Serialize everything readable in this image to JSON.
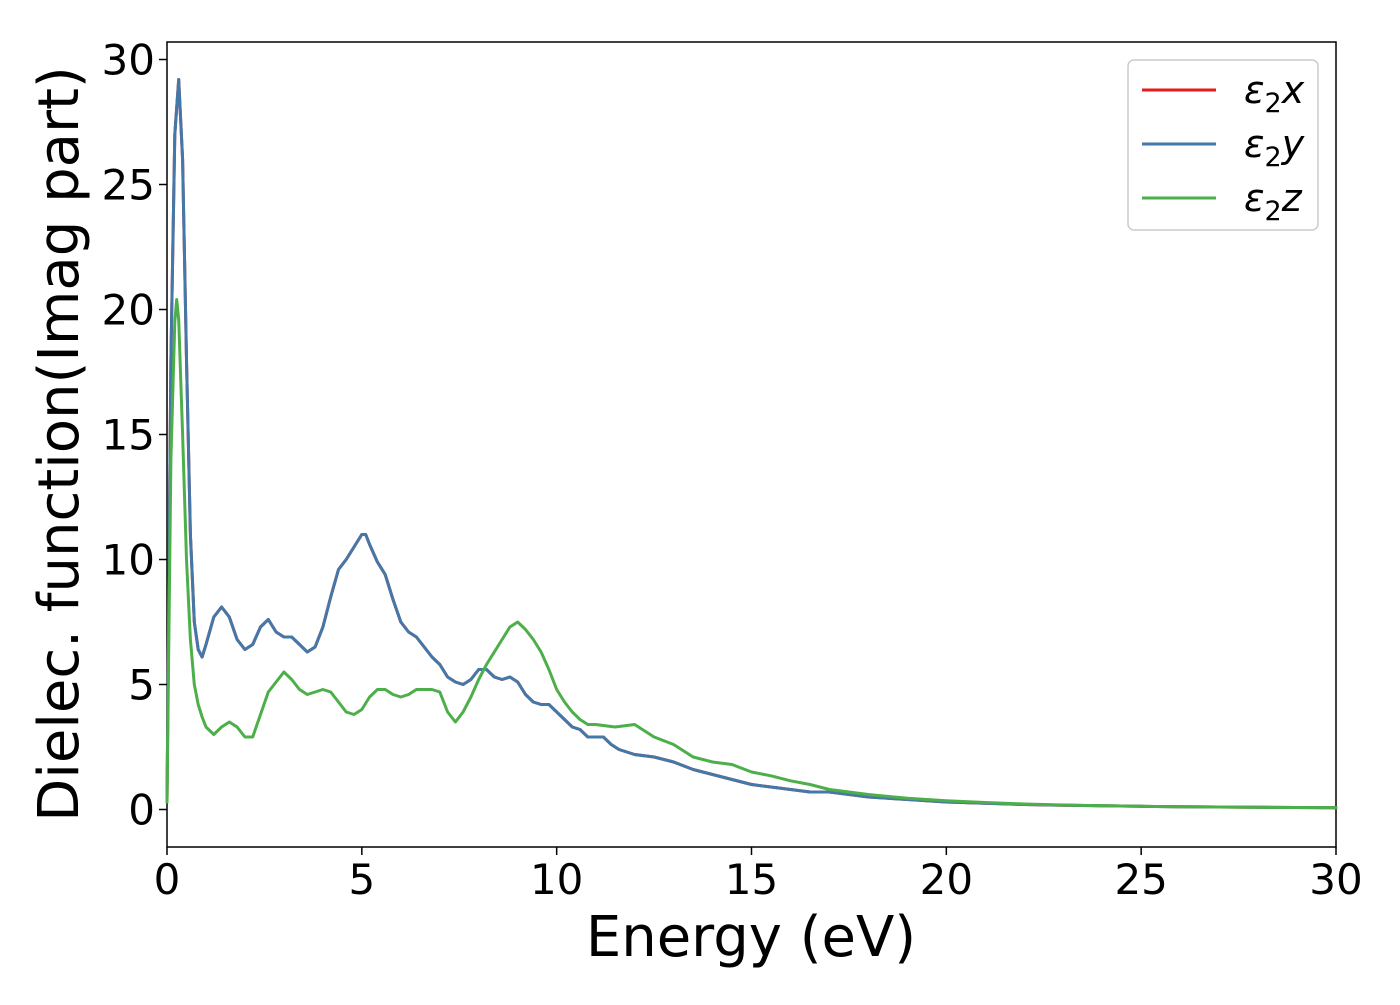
{
  "chart_data": {
    "type": "line",
    "xlabel": "Energy (eV)",
    "ylabel": "Dielec. function(Imag part)",
    "xlim": [
      0,
      30
    ],
    "ylim": [
      -1.5,
      30.7
    ],
    "xticks": [
      0,
      5,
      10,
      15,
      20,
      25,
      30
    ],
    "yticks": [
      0,
      5,
      10,
      15,
      20,
      25,
      30
    ],
    "grid": false,
    "legend_position": "top-right",
    "series": [
      {
        "name": "ε2x",
        "label_base": "ε",
        "label_sub": "2",
        "label_var": "x",
        "color": "#e41a1c",
        "x": [
          0,
          0.1,
          0.2,
          0.3,
          0.4,
          0.5,
          0.6,
          0.7,
          0.8,
          0.9,
          1.0,
          1.2,
          1.4,
          1.6,
          1.8,
          2.0,
          2.2,
          2.4,
          2.6,
          2.8,
          3.0,
          3.2,
          3.4,
          3.6,
          3.8,
          4.0,
          4.2,
          4.4,
          4.6,
          4.8,
          5.0,
          5.1,
          5.2,
          5.4,
          5.6,
          5.8,
          6.0,
          6.2,
          6.4,
          6.6,
          6.8,
          7.0,
          7.2,
          7.4,
          7.6,
          7.8,
          8.0,
          8.2,
          8.4,
          8.6,
          8.8,
          9.0,
          9.2,
          9.4,
          9.6,
          9.8,
          10.0,
          10.2,
          10.4,
          10.6,
          10.8,
          11.0,
          11.2,
          11.4,
          11.6,
          11.8,
          12.0,
          12.5,
          13.0,
          13.5,
          14.0,
          14.5,
          15.0,
          15.5,
          16.0,
          16.5,
          17.0,
          17.5,
          18.0,
          19.0,
          20.0,
          21.0,
          22.0,
          23.0,
          24.0,
          25.0,
          26.0,
          27.0,
          28.0,
          29.0,
          30.0
        ],
        "y": [
          0.3,
          18.0,
          27.0,
          29.2,
          26.0,
          18.0,
          11.0,
          7.5,
          6.4,
          6.1,
          6.6,
          7.7,
          8.1,
          7.7,
          6.8,
          6.4,
          6.6,
          7.3,
          7.6,
          7.1,
          6.9,
          6.9,
          6.6,
          6.3,
          6.5,
          7.3,
          8.5,
          9.6,
          10.0,
          10.5,
          11.0,
          11.0,
          10.6,
          9.9,
          9.4,
          8.4,
          7.5,
          7.1,
          6.9,
          6.5,
          6.1,
          5.8,
          5.3,
          5.1,
          5.0,
          5.2,
          5.6,
          5.6,
          5.3,
          5.2,
          5.3,
          5.1,
          4.6,
          4.3,
          4.2,
          4.2,
          3.9,
          3.6,
          3.3,
          3.2,
          2.9,
          2.9,
          2.9,
          2.6,
          2.4,
          2.3,
          2.2,
          2.1,
          1.9,
          1.6,
          1.4,
          1.2,
          1.0,
          0.9,
          0.8,
          0.7,
          0.7,
          0.6,
          0.5,
          0.4,
          0.3,
          0.25,
          0.2,
          0.17,
          0.15,
          0.13,
          0.11,
          0.1,
          0.09,
          0.08,
          0.07
        ]
      },
      {
        "name": "ε2y",
        "label_base": "ε",
        "label_sub": "2",
        "label_var": "y",
        "color": "#4478a8",
        "x": [
          0,
          0.1,
          0.2,
          0.3,
          0.4,
          0.5,
          0.6,
          0.7,
          0.8,
          0.9,
          1.0,
          1.2,
          1.4,
          1.6,
          1.8,
          2.0,
          2.2,
          2.4,
          2.6,
          2.8,
          3.0,
          3.2,
          3.4,
          3.6,
          3.8,
          4.0,
          4.2,
          4.4,
          4.6,
          4.8,
          5.0,
          5.1,
          5.2,
          5.4,
          5.6,
          5.8,
          6.0,
          6.2,
          6.4,
          6.6,
          6.8,
          7.0,
          7.2,
          7.4,
          7.6,
          7.8,
          8.0,
          8.2,
          8.4,
          8.6,
          8.8,
          9.0,
          9.2,
          9.4,
          9.6,
          9.8,
          10.0,
          10.2,
          10.4,
          10.6,
          10.8,
          11.0,
          11.2,
          11.4,
          11.6,
          11.8,
          12.0,
          12.5,
          13.0,
          13.5,
          14.0,
          14.5,
          15.0,
          15.5,
          16.0,
          16.5,
          17.0,
          17.5,
          18.0,
          19.0,
          20.0,
          21.0,
          22.0,
          23.0,
          24.0,
          25.0,
          26.0,
          27.0,
          28.0,
          29.0,
          30.0
        ],
        "y": [
          0.3,
          18.0,
          27.0,
          29.2,
          26.0,
          18.0,
          11.0,
          7.5,
          6.4,
          6.1,
          6.6,
          7.7,
          8.1,
          7.7,
          6.8,
          6.4,
          6.6,
          7.3,
          7.6,
          7.1,
          6.9,
          6.9,
          6.6,
          6.3,
          6.5,
          7.3,
          8.5,
          9.6,
          10.0,
          10.5,
          11.0,
          11.0,
          10.6,
          9.9,
          9.4,
          8.4,
          7.5,
          7.1,
          6.9,
          6.5,
          6.1,
          5.8,
          5.3,
          5.1,
          5.0,
          5.2,
          5.6,
          5.6,
          5.3,
          5.2,
          5.3,
          5.1,
          4.6,
          4.3,
          4.2,
          4.2,
          3.9,
          3.6,
          3.3,
          3.2,
          2.9,
          2.9,
          2.9,
          2.6,
          2.4,
          2.3,
          2.2,
          2.1,
          1.9,
          1.6,
          1.4,
          1.2,
          1.0,
          0.9,
          0.8,
          0.7,
          0.7,
          0.6,
          0.5,
          0.4,
          0.3,
          0.25,
          0.2,
          0.17,
          0.15,
          0.13,
          0.11,
          0.1,
          0.09,
          0.08,
          0.07
        ]
      },
      {
        "name": "ε2z",
        "label_base": "ε",
        "label_sub": "2",
        "label_var": "z",
        "color": "#4daf4a",
        "x": [
          0,
          0.1,
          0.2,
          0.25,
          0.3,
          0.4,
          0.5,
          0.6,
          0.7,
          0.8,
          0.9,
          1.0,
          1.2,
          1.4,
          1.6,
          1.8,
          2.0,
          2.2,
          2.4,
          2.6,
          2.8,
          3.0,
          3.2,
          3.4,
          3.6,
          3.8,
          4.0,
          4.2,
          4.4,
          4.6,
          4.8,
          5.0,
          5.2,
          5.4,
          5.6,
          5.8,
          6.0,
          6.2,
          6.4,
          6.6,
          6.8,
          7.0,
          7.2,
          7.4,
          7.6,
          7.8,
          8.0,
          8.2,
          8.4,
          8.6,
          8.8,
          9.0,
          9.2,
          9.4,
          9.6,
          9.8,
          10.0,
          10.2,
          10.4,
          10.6,
          10.8,
          11.0,
          11.5,
          12.0,
          12.5,
          13.0,
          13.5,
          14.0,
          14.5,
          15.0,
          15.5,
          16.0,
          16.5,
          17.0,
          17.5,
          18.0,
          19.0,
          20.0,
          21.0,
          22.0,
          23.0,
          24.0,
          25.0,
          26.0,
          27.0,
          28.0,
          29.0,
          30.0
        ],
        "y": [
          0.3,
          14.0,
          19.5,
          20.4,
          19.6,
          15.0,
          10.0,
          6.8,
          5.0,
          4.2,
          3.7,
          3.3,
          3.0,
          3.3,
          3.5,
          3.3,
          2.9,
          2.9,
          3.8,
          4.7,
          5.1,
          5.5,
          5.2,
          4.8,
          4.6,
          4.7,
          4.8,
          4.7,
          4.3,
          3.9,
          3.8,
          4.0,
          4.5,
          4.8,
          4.8,
          4.6,
          4.5,
          4.6,
          4.8,
          4.8,
          4.8,
          4.7,
          3.9,
          3.5,
          3.9,
          4.5,
          5.2,
          5.8,
          6.3,
          6.8,
          7.3,
          7.5,
          7.2,
          6.8,
          6.3,
          5.6,
          4.8,
          4.3,
          3.9,
          3.6,
          3.4,
          3.4,
          3.3,
          3.4,
          2.9,
          2.6,
          2.1,
          1.9,
          1.8,
          1.5,
          1.35,
          1.15,
          1.0,
          0.8,
          0.7,
          0.6,
          0.45,
          0.35,
          0.28,
          0.22,
          0.18,
          0.15,
          0.13,
          0.11,
          0.1,
          0.09,
          0.08,
          0.07
        ]
      }
    ]
  }
}
